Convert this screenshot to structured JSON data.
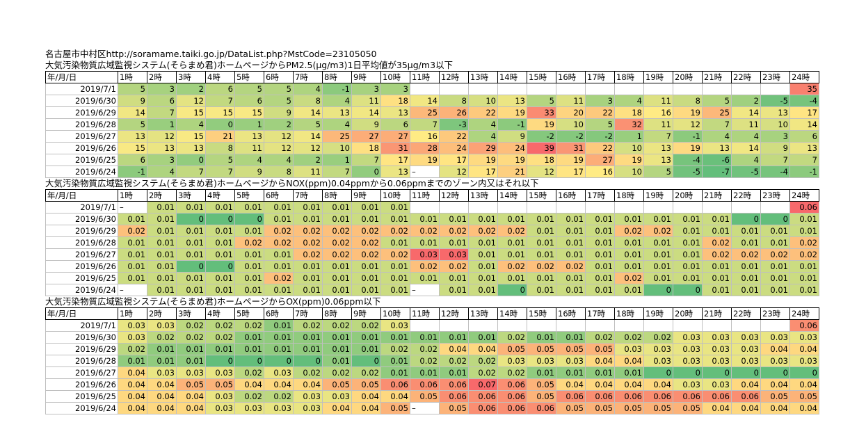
{
  "header": {
    "station": "名古屋市中村区",
    "url": "http://soramame.taiki.go.jp/DataList.php?MstCode=23105050"
  },
  "hours": [
    "1時",
    "2時",
    "3時",
    "4時",
    "5時",
    "6時",
    "7時",
    "8時",
    "9時",
    "10時",
    "11時",
    "12時",
    "13時",
    "14時",
    "15時",
    "16時",
    "17時",
    "18時",
    "19時",
    "20時",
    "21時",
    "22時",
    "23時",
    "24時"
  ],
  "date_header": "年/月/日",
  "dates": [
    "2019/7/1",
    "2019/6/30",
    "2019/6/29",
    "2019/6/28",
    "2019/6/27",
    "2019/6/26",
    "2019/6/25",
    "2019/6/24"
  ],
  "sections": [
    {
      "title": "大気汚染物質広域監視システム(そらまめ君)ホームページからPM2.5(μg/m3)1日平均値が35μg/m3以下",
      "kind": "pm",
      "rows": [
        [
          "5",
          "3",
          "2",
          "6",
          "5",
          "5",
          "4",
          "-1",
          "3",
          "3",
          "",
          "",
          "",
          "",
          "",
          "",
          "",
          "",
          "",
          "",
          "",
          "",
          "",
          "35"
        ],
        [
          "9",
          "6",
          "12",
          "7",
          "6",
          "5",
          "8",
          "4",
          "11",
          "18",
          "14",
          "8",
          "10",
          "13",
          "5",
          "11",
          "3",
          "4",
          "11",
          "8",
          "5",
          "2",
          "-5",
          "-4"
        ],
        [
          "14",
          "7",
          "15",
          "15",
          "15",
          "9",
          "14",
          "13",
          "14",
          "13",
          "25",
          "26",
          "22",
          "19",
          "33",
          "20",
          "22",
          "18",
          "16",
          "19",
          "25",
          "14",
          "13",
          "17"
        ],
        [
          "5",
          "1",
          "4",
          "0",
          "1",
          "2",
          "5",
          "4",
          "9",
          "6",
          "7",
          "-3",
          "4",
          "-1",
          "19",
          "10",
          "5",
          "32",
          "11",
          "12",
          "7",
          "11",
          "10",
          "14"
        ],
        [
          "13",
          "12",
          "15",
          "21",
          "13",
          "12",
          "14",
          "25",
          "27",
          "27",
          "16",
          "22",
          "4",
          "9",
          "-2",
          "-2",
          "-2",
          "1",
          "7",
          "-1",
          "4",
          "4",
          "3",
          "6"
        ],
        [
          "15",
          "13",
          "13",
          "8",
          "11",
          "12",
          "12",
          "10",
          "18",
          "31",
          "28",
          "24",
          "29",
          "24",
          "39",
          "31",
          "22",
          "10",
          "13",
          "19",
          "13",
          "14",
          "9",
          "13"
        ],
        [
          "6",
          "3",
          "0",
          "5",
          "4",
          "4",
          "2",
          "1",
          "7",
          "17",
          "19",
          "17",
          "19",
          "19",
          "18",
          "19",
          "27",
          "19",
          "13",
          "-4",
          "-6",
          "4",
          "7",
          "7"
        ],
        [
          "-1",
          "4",
          "7",
          "7",
          "9",
          "8",
          "11",
          "7",
          "0",
          "13",
          "–",
          "12",
          "17",
          "21",
          "12",
          "17",
          "16",
          "10",
          "5",
          "-5",
          "-7",
          "-5",
          "-4",
          "-1"
        ]
      ]
    },
    {
      "title": "大気汚染物質広域監視システム(そらまめ君)ホームページからNOX(ppm)0.04ppmから0.06ppmまでのゾーン内又はそれ以下",
      "kind": "nox",
      "rows": [
        [
          "–",
          "0.01",
          "0.01",
          "0.01",
          "0.01",
          "0.01",
          "0.01",
          "0.01",
          "0.01",
          "0.01",
          "",
          "",
          "",
          "",
          "",
          "",
          "",
          "",
          "",
          "",
          "",
          "",
          "",
          "0.06"
        ],
        [
          "0.01",
          "0.01",
          "0",
          "0",
          "0",
          "0.01",
          "0.01",
          "0.01",
          "0.01",
          "0.01",
          "0.01",
          "0.01",
          "0.01",
          "0.01",
          "0.01",
          "0.01",
          "0.01",
          "0.01",
          "0.01",
          "0.01",
          "0.01",
          "0",
          "0",
          "0.01"
        ],
        [
          "0.02",
          "0.01",
          "0.01",
          "0.01",
          "0.01",
          "0.02",
          "0.02",
          "0.02",
          "0.02",
          "0.02",
          "0.02",
          "0.02",
          "0.02",
          "0.02",
          "0.01",
          "0.01",
          "0.01",
          "0.02",
          "0.02",
          "0.01",
          "0.01",
          "0.01",
          "0.01",
          "0.01"
        ],
        [
          "0.01",
          "0.01",
          "0.01",
          "0.01",
          "0.02",
          "0.02",
          "0.02",
          "0.02",
          "0.02",
          "0.01",
          "0.01",
          "0.01",
          "0.01",
          "0.01",
          "0.01",
          "0.01",
          "0.01",
          "0.01",
          "0.01",
          "0.01",
          "0.02",
          "0.01",
          "0.01",
          "0.02"
        ],
        [
          "0.01",
          "0.01",
          "0.01",
          "0.01",
          "0.01",
          "0.01",
          "0.02",
          "0.02",
          "0.02",
          "0.02",
          "0.03",
          "0.03",
          "0.01",
          "0.01",
          "0.01",
          "0.01",
          "0.01",
          "0.01",
          "0.01",
          "0.01",
          "0.02",
          "0.02",
          "0.02",
          "0.02"
        ],
        [
          "0.01",
          "0.01",
          "0",
          "0",
          "0.01",
          "0.01",
          "0.01",
          "0.01",
          "0.01",
          "0.01",
          "0.02",
          "0.02",
          "0.01",
          "0.02",
          "0.02",
          "0.02",
          "0.01",
          "0.01",
          "0.01",
          "0.01",
          "0.01",
          "0.01",
          "0.01",
          "0.01"
        ],
        [
          "0.01",
          "0.01",
          "0.01",
          "0.01",
          "0.01",
          "0.02",
          "0.01",
          "0.01",
          "0.01",
          "0.01",
          "0.01",
          "0.01",
          "0.01",
          "0.01",
          "0.01",
          "0.01",
          "0.01",
          "0.02",
          "0.01",
          "0.01",
          "0.01",
          "0.01",
          "0.01",
          "0.01"
        ],
        [
          "–",
          "0.01",
          "0.01",
          "0.01",
          "0.01",
          "0.01",
          "0.01",
          "0.01",
          "0.01",
          "0.01",
          "–",
          "0.01",
          "0.01",
          "0",
          "0.01",
          "0.01",
          "0.01",
          "0.01",
          "0",
          "0",
          "0.01",
          "0.01",
          "0.01",
          "0.01"
        ]
      ]
    },
    {
      "title": "大気汚染物質広域監視システム(そらまめ君)ホームページからOX(ppm)0.06ppm以下",
      "kind": "ox",
      "rows": [
        [
          "0.03",
          "0.03",
          "0.02",
          "0.02",
          "0.02",
          "0.01",
          "0.02",
          "0.02",
          "0.02",
          "0.03",
          "",
          "",
          "",
          "",
          "",
          "",
          "",
          "",
          "",
          "",
          "",
          "",
          "",
          "0.06"
        ],
        [
          "0.03",
          "0.02",
          "0.02",
          "0.02",
          "0.01",
          "0.01",
          "0.01",
          "0.01",
          "0.01",
          "0.01",
          "0.01",
          "0.01",
          "0.01",
          "0.02",
          "0.01",
          "0.01",
          "0.02",
          "0.02",
          "0.02",
          "0.03",
          "0.03",
          "0.03",
          "0.03",
          "0.03"
        ],
        [
          "0.02",
          "0.01",
          "0.01",
          "0.01",
          "0.01",
          "0.01",
          "0.01",
          "0.01",
          "0.01",
          "0.02",
          "0.02",
          "0.04",
          "0.04",
          "0.05",
          "0.05",
          "0.05",
          "0.05",
          "0.03",
          "0.03",
          "0.03",
          "0.03",
          "0.03",
          "0.04",
          "0.04"
        ],
        [
          "0.01",
          "0.01",
          "0.01",
          "0",
          "0",
          "0",
          "0",
          "0.01",
          "0",
          "0.01",
          "0.02",
          "0.02",
          "0.02",
          "0.03",
          "0.03",
          "0.03",
          "0.04",
          "0.04",
          "0.03",
          "0.03",
          "0.03",
          "0.03",
          "0.03",
          "0.03"
        ],
        [
          "0.04",
          "0.03",
          "0.03",
          "0.03",
          "0.02",
          "0.03",
          "0.02",
          "0.02",
          "0.02",
          "0.01",
          "0.01",
          "0.01",
          "0.02",
          "0.02",
          "0.01",
          "0.01",
          "0.01",
          "0.01",
          "0",
          "0",
          "0",
          "0",
          "0",
          "0"
        ],
        [
          "0.04",
          "0.04",
          "0.05",
          "0.05",
          "0.04",
          "0.04",
          "0.04",
          "0.05",
          "0.05",
          "0.06",
          "0.06",
          "0.06",
          "0.07",
          "0.06",
          "0.05",
          "0.04",
          "0.04",
          "0.04",
          "0.04",
          "0.03",
          "0.03",
          "0.04",
          "0.04",
          "0.04"
        ],
        [
          "0.04",
          "0.04",
          "0.04",
          "0.03",
          "0.02",
          "0.02",
          "0.03",
          "0.03",
          "0.04",
          "0.04",
          "0.05",
          "0.06",
          "0.06",
          "0.06",
          "0.05",
          "0.06",
          "0.06",
          "0.06",
          "0.06",
          "0.06",
          "0.06",
          "0.06",
          "0.05",
          "0.05"
        ],
        [
          "0.04",
          "0.04",
          "0.04",
          "0.03",
          "0.03",
          "0.03",
          "0.03",
          "0.04",
          "0.04",
          "0.05",
          "–",
          "0.05",
          "0.06",
          "0.06",
          "0.06",
          "0.05",
          "0.05",
          "0.05",
          "0.05",
          "0.05",
          "0.04",
          "0.04",
          "0.04",
          "0.04"
        ]
      ]
    }
  ]
}
